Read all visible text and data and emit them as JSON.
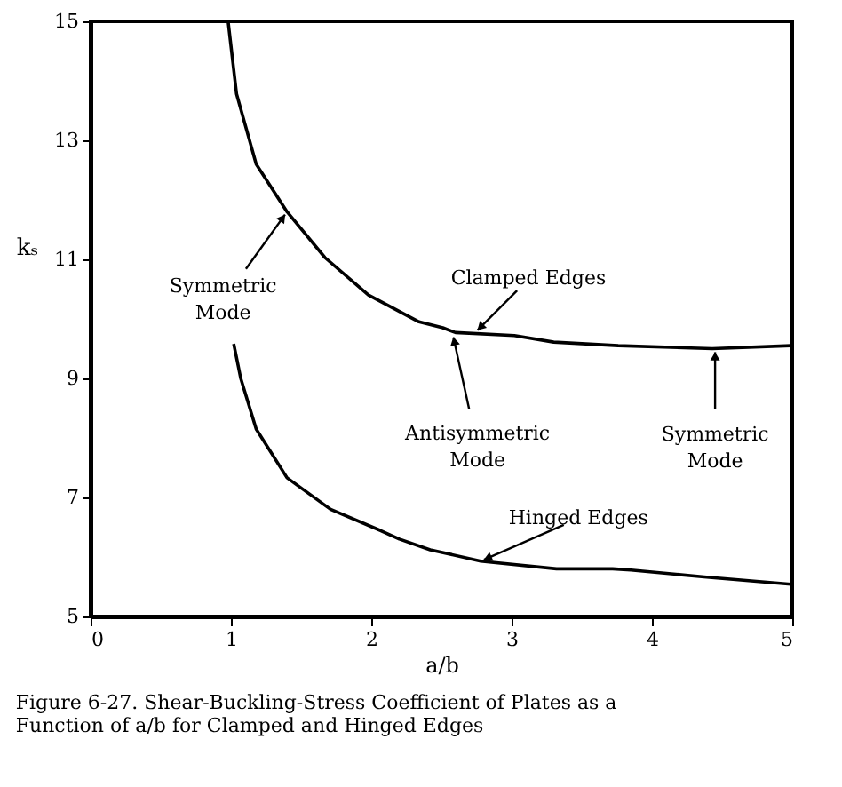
{
  "chart_data": {
    "type": "line",
    "title": "Figure 6-27.  Shear-Buckling-Stress Coefficient of Plates as a Function of a/b for Clamped and Hinged Edges",
    "xlabel": "a/b",
    "ylabel": "kₛ",
    "xlim": [
      0,
      5
    ],
    "ylim": [
      5,
      15
    ],
    "xticks": [
      0,
      1,
      2,
      3,
      4,
      5
    ],
    "yticks": [
      5,
      7,
      9,
      11,
      13,
      15
    ],
    "grid": false,
    "marker": "none",
    "line_style": "solid",
    "series": [
      {
        "color": "#000000",
        "x": [
          0.98,
          1.04,
          1.18,
          1.4,
          1.67,
          1.98,
          2.34,
          2.51,
          2.6,
          3.02,
          3.3,
          3.76,
          4.43,
          4.99
        ],
        "values": [
          15,
          13.78,
          12.6,
          11.8,
          11.03,
          10.4,
          9.95,
          9.85,
          9.77,
          9.72,
          9.61,
          9.55,
          9.5,
          9.55
        ]
      },
      {
        "color": "#000000",
        "x": [
          1.02,
          1.07,
          1.18,
          1.4,
          1.71,
          2.07,
          2.2,
          2.42,
          2.78,
          3.32,
          3.72,
          3.85,
          4.39,
          4.99
        ],
        "values": [
          9.58,
          9.0,
          8.15,
          7.33,
          6.8,
          6.44,
          6.3,
          6.12,
          5.93,
          5.8,
          5.8,
          5.78,
          5.66,
          5.54
        ]
      }
    ],
    "annotations": [
      {
        "text": "Symmetric Mode",
        "x": 1.4,
        "y": 11.8
      },
      {
        "text": "Clamped Edges",
        "x": 2.74,
        "y": 9.77
      },
      {
        "text": "Antisymmetric Mode",
        "x": 2.58,
        "y": 9.75
      },
      {
        "text": "Hinged Edges",
        "x": 2.78,
        "y": 5.93
      },
      {
        "text": "Symmetric Mode",
        "x": 4.45,
        "y": 9.5
      }
    ]
  }
}
